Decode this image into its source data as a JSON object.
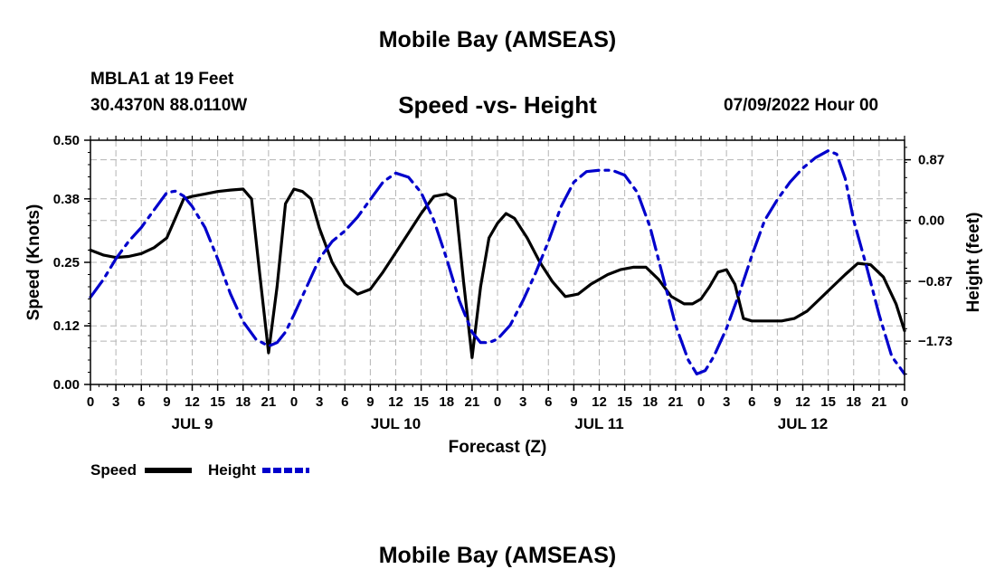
{
  "header": {
    "title": "Mobile Bay (AMSEAS)",
    "station": "MBLA1 at 19 Feet",
    "coords": "30.4370N  88.0110W",
    "subtitle": "Speed -vs- Height",
    "run_time": "07/09/2022 Hour 00",
    "title_repeat": "Mobile Bay (AMSEAS)"
  },
  "chart_data": {
    "type": "line",
    "title": "Speed -vs- Height",
    "xlabel": "Forecast (Z)",
    "ylabel": "Speed (Knots)",
    "y2label": "Height (feet)",
    "xlim": [
      0,
      96
    ],
    "ylim": [
      0,
      0.5
    ],
    "y2lim": [
      -2.35,
      1.15
    ],
    "x_tick_labels": [
      "0",
      "3",
      "6",
      "9",
      "12",
      "15",
      "18",
      "21",
      "0",
      "3",
      "6",
      "9",
      "12",
      "15",
      "18",
      "21",
      "0",
      "3",
      "6",
      "9",
      "12",
      "15",
      "18",
      "21",
      "0",
      "3",
      "6",
      "9",
      "12",
      "15",
      "18",
      "21",
      "0"
    ],
    "y_ticks": [
      0.0,
      0.12,
      0.25,
      0.38,
      0.5
    ],
    "y_tick_labels": [
      "0.00",
      "0.12",
      "0.25",
      "0.38",
      "0.50"
    ],
    "y2_ticks": [
      0.87,
      0.0,
      -0.87,
      -1.73
    ],
    "y2_tick_labels": [
      "0.87",
      "0.00",
      "−0.87",
      "−1.73"
    ],
    "day_labels": [
      {
        "text": "JUL 9",
        "x": 12
      },
      {
        "text": "JUL 10",
        "x": 36
      },
      {
        "text": "JUL 11",
        "x": 60
      },
      {
        "text": "JUL 12",
        "x": 84
      }
    ],
    "grid": true,
    "series": [
      {
        "name": "Speed",
        "axis": "left",
        "color": "#000000",
        "style": "solid",
        "x": [
          0,
          1.5,
          3,
          4.5,
          6,
          7.5,
          9,
          10,
          11,
          12,
          13.5,
          15,
          16.5,
          18,
          19,
          20,
          21,
          22,
          23,
          24,
          25,
          26,
          27,
          28.5,
          30,
          31.5,
          33,
          34.5,
          36,
          37.5,
          39,
          40.5,
          42,
          43,
          44,
          45,
          46,
          47,
          48,
          49,
          50,
          51.5,
          53,
          54.5,
          56,
          57.5,
          59,
          60,
          61,
          62.5,
          64,
          65.5,
          67,
          68.5,
          70,
          71,
          72,
          73,
          74,
          75,
          76,
          77,
          78,
          79,
          80,
          81.5,
          83,
          84.5,
          86,
          87.5,
          89,
          90.5,
          92,
          93.5,
          95,
          96
        ],
        "values": [
          0.275,
          0.265,
          0.26,
          0.262,
          0.268,
          0.28,
          0.3,
          0.34,
          0.38,
          0.385,
          0.39,
          0.395,
          0.398,
          0.4,
          0.38,
          0.22,
          0.065,
          0.2,
          0.37,
          0.4,
          0.395,
          0.38,
          0.32,
          0.25,
          0.205,
          0.185,
          0.195,
          0.23,
          0.27,
          0.31,
          0.35,
          0.385,
          0.39,
          0.38,
          0.21,
          0.055,
          0.2,
          0.3,
          0.33,
          0.35,
          0.34,
          0.3,
          0.25,
          0.21,
          0.18,
          0.185,
          0.205,
          0.215,
          0.225,
          0.235,
          0.24,
          0.24,
          0.215,
          0.18,
          0.165,
          0.165,
          0.175,
          0.2,
          0.23,
          0.235,
          0.205,
          0.135,
          0.13,
          0.13,
          0.13,
          0.13,
          0.135,
          0.15,
          0.175,
          0.2,
          0.225,
          0.248,
          0.245,
          0.22,
          0.165,
          0.11
        ]
      },
      {
        "name": "Height",
        "axis": "right",
        "color": "#0000cc",
        "style": "dashed",
        "x": [
          0,
          1.5,
          3,
          4.5,
          6,
          7.5,
          9,
          10,
          11,
          12,
          13.5,
          15,
          16.5,
          18,
          19.5,
          21,
          22,
          23,
          24,
          25.5,
          27,
          28.5,
          30,
          31.5,
          33,
          34.5,
          36,
          37.5,
          39,
          40.5,
          42,
          43.5,
          45,
          46,
          47,
          48,
          49.5,
          51,
          52.5,
          54,
          55.5,
          57,
          58.5,
          60,
          61.5,
          63,
          64.5,
          66,
          67.5,
          69,
          70.5,
          71.5,
          72.5,
          73.5,
          75,
          76.5,
          78,
          79.5,
          81,
          82.5,
          84,
          85.5,
          87,
          88,
          89,
          90,
          91.5,
          93,
          94.5,
          96
        ],
        "values": [
          -1.1,
          -0.85,
          -0.55,
          -0.3,
          -0.1,
          0.15,
          0.4,
          0.42,
          0.35,
          0.2,
          -0.1,
          -0.55,
          -1.05,
          -1.45,
          -1.7,
          -1.8,
          -1.75,
          -1.6,
          -1.35,
          -0.95,
          -0.55,
          -0.3,
          -0.15,
          0.05,
          0.3,
          0.55,
          0.68,
          0.62,
          0.4,
          0.0,
          -0.55,
          -1.15,
          -1.6,
          -1.75,
          -1.75,
          -1.7,
          -1.5,
          -1.15,
          -0.75,
          -0.3,
          0.2,
          0.55,
          0.7,
          0.72,
          0.72,
          0.65,
          0.4,
          -0.1,
          -0.8,
          -1.5,
          -2.0,
          -2.2,
          -2.15,
          -1.95,
          -1.55,
          -1.05,
          -0.5,
          0.0,
          0.3,
          0.55,
          0.75,
          0.9,
          1.0,
          0.95,
          0.6,
          0.0,
          -0.65,
          -1.35,
          -1.95,
          -2.2
        ]
      }
    ],
    "legend": [
      {
        "label": "Speed",
        "color": "#000000",
        "style": "solid"
      },
      {
        "label": "Height",
        "color": "#0000cc",
        "style": "dashed"
      }
    ],
    "legend_position": "bottom-left"
  }
}
